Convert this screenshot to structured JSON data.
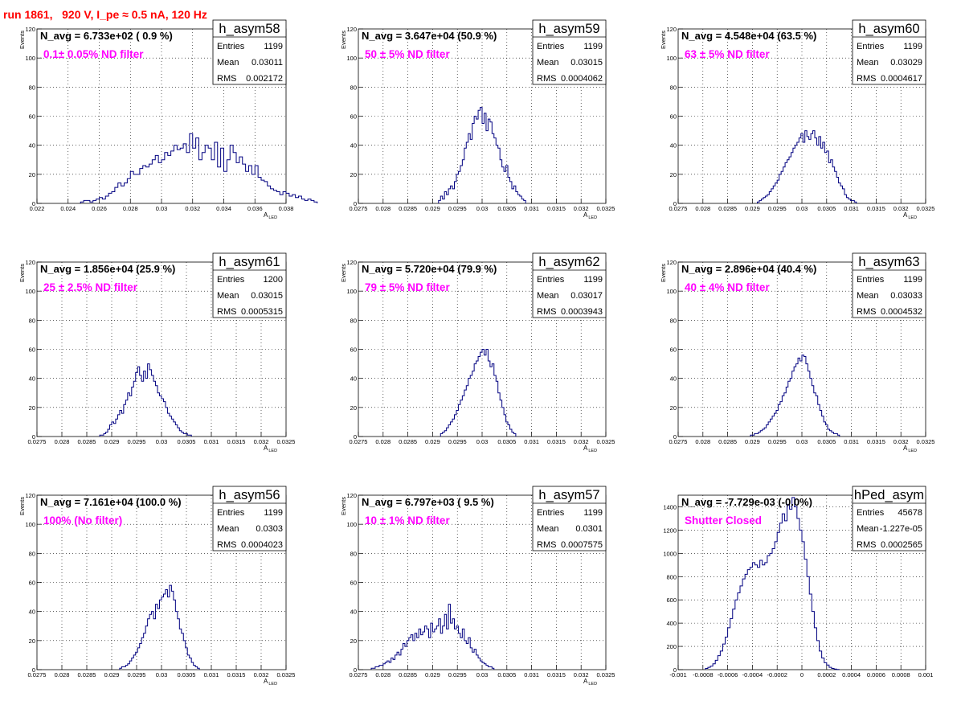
{
  "title": "run 1861,   920 V, I_pe ≈ 0.5 nA, 120 Hz",
  "colors": {
    "title": "#ff0000",
    "label": "#ff00ff",
    "histogram": "#000080",
    "grid": "#000000"
  },
  "chart_data": [
    {
      "type": "bar",
      "name": "h_asym58",
      "ylabel": "Events",
      "xlabel": "A",
      "xlabel_sub": "LED",
      "navg": "N_avg = 6.733e+02 ( 0.9 %)",
      "filter": "0.1± 0.05% ND filter",
      "stats": {
        "entries": "1199",
        "mean": "0.03011",
        "rms": "0.002172"
      },
      "xlim": [
        0.022,
        0.038
      ],
      "ylim": [
        0,
        120
      ],
      "grid": true,
      "legend": "top-right",
      "xticks": [
        "0.022",
        "0.024",
        "0.026",
        "0.028",
        "0.03",
        "0.032",
        "0.034",
        "0.036",
        "0.038"
      ],
      "yticks": [
        "0",
        "20",
        "40",
        "60",
        "80",
        "100",
        "120"
      ],
      "bin_start": 0.0248,
      "bin_width": 0.0002,
      "values": [
        1,
        2,
        2,
        1,
        2,
        3,
        4,
        3,
        5,
        7,
        8,
        11,
        14,
        12,
        14,
        17,
        22,
        20,
        20,
        24,
        26,
        25,
        27,
        30,
        33,
        28,
        30,
        35,
        33,
        36,
        40,
        37,
        38,
        41,
        35,
        48,
        38,
        45,
        30,
        35,
        40,
        38,
        30,
        42,
        25,
        38,
        22,
        30,
        40,
        35,
        28,
        32,
        27,
        22,
        26,
        20,
        26,
        18,
        16,
        15,
        12,
        10,
        9,
        8,
        6,
        8,
        7,
        5,
        6,
        4,
        5,
        3,
        2,
        3,
        2,
        1
      ]
    },
    {
      "type": "bar",
      "name": "h_asym59",
      "ylabel": "Events",
      "xlabel": "A",
      "xlabel_sub": "LED",
      "navg": "N_avg = 3.647e+04 (50.9 %)",
      "filter": "50 ± 5% ND filter",
      "stats": {
        "entries": "1199",
        "mean": "0.03015",
        "rms": "0.0004062"
      },
      "xlim": [
        0.0275,
        0.0325
      ],
      "ylim": [
        0,
        120
      ],
      "grid": true,
      "legend": "top-right",
      "xticks": [
        "0.0275",
        "0.028",
        "0.0285",
        "0.029",
        "0.0295",
        "0.03",
        "0.0305",
        "0.031",
        "0.0315",
        "0.032",
        "0.0325"
      ],
      "yticks": [
        "0",
        "20",
        "40",
        "60",
        "80",
        "100",
        "120"
      ],
      "bin_start": 0.02912,
      "bin_width": 4e-05,
      "values": [
        2,
        5,
        3,
        8,
        6,
        10,
        12,
        10,
        15,
        20,
        22,
        26,
        30,
        38,
        42,
        48,
        44,
        55,
        60,
        58,
        64,
        66,
        55,
        62,
        50,
        58,
        56,
        48,
        45,
        40,
        38,
        30,
        25,
        22,
        26,
        18,
        15,
        10,
        12,
        8,
        6,
        5,
        3,
        2
      ]
    },
    {
      "type": "bar",
      "name": "h_asym60",
      "ylabel": "Events",
      "xlabel": "A",
      "xlabel_sub": "LED",
      "navg": "N_avg = 4.548e+04 (63.5 %)",
      "filter": "63 ± 5% ND filter",
      "stats": {
        "entries": "1199",
        "mean": "0.03029",
        "rms": "0.0004617"
      },
      "xlim": [
        0.0275,
        0.0325
      ],
      "ylim": [
        0,
        120
      ],
      "grid": true,
      "legend": "top-right",
      "xticks": [
        "0.0275",
        "0.028",
        "0.0285",
        "0.029",
        "0.0295",
        "0.03",
        "0.0305",
        "0.031",
        "0.0315",
        "0.032",
        "0.0325"
      ],
      "yticks": [
        "0",
        "20",
        "40",
        "60",
        "80",
        "100",
        "120"
      ],
      "bin_start": 0.0291,
      "bin_width": 4e-05,
      "values": [
        1,
        2,
        3,
        4,
        5,
        6,
        8,
        10,
        12,
        14,
        16,
        20,
        22,
        25,
        28,
        30,
        32,
        35,
        38,
        40,
        42,
        45,
        48,
        42,
        50,
        46,
        44,
        48,
        50,
        45,
        40,
        46,
        38,
        42,
        35,
        36,
        28,
        30,
        25,
        22,
        18,
        14,
        12,
        10,
        6,
        4,
        3,
        2,
        2,
        1
      ]
    },
    {
      "type": "bar",
      "name": "h_asym61",
      "ylabel": "Events",
      "xlabel": "A",
      "xlabel_sub": "LED",
      "navg": "N_avg = 1.856e+04 (25.9 %)",
      "filter": "25 ± 2.5% ND filter",
      "stats": {
        "entries": "1200",
        "mean": "0.03015",
        "rms": "0.0005315"
      },
      "xlim": [
        0.0275,
        0.0325
      ],
      "ylim": [
        0,
        120
      ],
      "grid": true,
      "legend": "top-right",
      "xticks": [
        "0.0275",
        "0.028",
        "0.0285",
        "0.029",
        "0.0295",
        "0.03",
        "0.0305",
        "0.031",
        "0.0315",
        "0.032",
        "0.0325"
      ],
      "yticks": [
        "0",
        "20",
        "40",
        "60",
        "80",
        "100",
        "120"
      ],
      "bin_start": 0.02876,
      "bin_width": 4e-05,
      "values": [
        1,
        1,
        2,
        3,
        5,
        8,
        10,
        9,
        12,
        15,
        18,
        16,
        22,
        25,
        30,
        28,
        34,
        38,
        44,
        48,
        42,
        38,
        45,
        40,
        50,
        46,
        42,
        38,
        35,
        30,
        28,
        26,
        24,
        20,
        16,
        14,
        12,
        10,
        8,
        6,
        4,
        3,
        2,
        2,
        1,
        1
      ]
    },
    {
      "type": "bar",
      "name": "h_asym62",
      "ylabel": "Events",
      "xlabel": "A",
      "xlabel_sub": "LED",
      "navg": "N_avg = 5.720e+04 (79.9 %)",
      "filter": "79 ± 5% ND filter",
      "stats": {
        "entries": "1199",
        "mean": "0.03017",
        "rms": "0.0003943"
      },
      "xlim": [
        0.0275,
        0.0325
      ],
      "ylim": [
        0,
        120
      ],
      "grid": true,
      "legend": "top-right",
      "xticks": [
        "0.0275",
        "0.028",
        "0.0285",
        "0.029",
        "0.0295",
        "0.03",
        "0.0305",
        "0.031",
        "0.0315",
        "0.032",
        "0.0325"
      ],
      "yticks": [
        "0",
        "20",
        "40",
        "60",
        "80",
        "100",
        "120"
      ],
      "bin_start": 0.02916,
      "bin_width": 4e-05,
      "values": [
        2,
        3,
        4,
        6,
        8,
        10,
        12,
        15,
        18,
        22,
        25,
        28,
        32,
        35,
        40,
        42,
        45,
        50,
        52,
        55,
        58,
        60,
        56,
        60,
        52,
        48,
        50,
        42,
        38,
        30,
        25,
        20,
        15,
        10,
        8,
        5,
        3,
        2
      ]
    },
    {
      "type": "bar",
      "name": "h_asym63",
      "ylabel": "Events",
      "xlabel": "A",
      "xlabel_sub": "LED",
      "navg": "N_avg = 2.896e+04 (40.4 %)",
      "filter": "40 ± 4% ND filter",
      "stats": {
        "entries": "1199",
        "mean": "0.03033",
        "rms": "0.0004532"
      },
      "xlim": [
        0.0275,
        0.0325
      ],
      "ylim": [
        0,
        120
      ],
      "grid": true,
      "legend": "top-right",
      "xticks": [
        "0.0275",
        "0.028",
        "0.0285",
        "0.029",
        "0.0295",
        "0.03",
        "0.0305",
        "0.031",
        "0.0315",
        "0.032",
        "0.0325"
      ],
      "yticks": [
        "0",
        "20",
        "40",
        "60",
        "80",
        "100",
        "120"
      ],
      "bin_start": 0.02896,
      "bin_width": 4e-05,
      "values": [
        1,
        1,
        2,
        2,
        3,
        4,
        5,
        6,
        8,
        10,
        12,
        14,
        16,
        18,
        22,
        24,
        28,
        30,
        34,
        38,
        40,
        45,
        48,
        50,
        54,
        52,
        56,
        55,
        50,
        45,
        40,
        35,
        30,
        28,
        22,
        18,
        14,
        10,
        8,
        5,
        4,
        3,
        2,
        2,
        1
      ]
    },
    {
      "type": "bar",
      "name": "h_asym56",
      "ylabel": "Events",
      "xlabel": "A",
      "xlabel_sub": "LED",
      "navg": "N_avg = 7.161e+04 (100.0 %)",
      "filter": "100% (No filter)",
      "stats": {
        "entries": "1199",
        "mean": "0.0303",
        "rms": "0.0004023"
      },
      "xlim": [
        0.0275,
        0.0325
      ],
      "ylim": [
        0,
        120
      ],
      "grid": true,
      "legend": "top-right",
      "xticks": [
        "0.0275",
        "0.028",
        "0.0285",
        "0.029",
        "0.0295",
        "0.03",
        "0.0305",
        "0.031",
        "0.0315",
        "0.032",
        "0.0325"
      ],
      "yticks": [
        "0",
        "20",
        "40",
        "60",
        "80",
        "100",
        "120"
      ],
      "bin_start": 0.02916,
      "bin_width": 4e-05,
      "values": [
        1,
        2,
        2,
        3,
        4,
        6,
        8,
        10,
        12,
        15,
        18,
        22,
        25,
        30,
        35,
        38,
        40,
        35,
        45,
        42,
        48,
        50,
        52,
        55,
        50,
        58,
        54,
        48,
        40,
        35,
        28,
        25,
        20,
        15,
        10,
        8,
        5,
        3,
        2,
        1
      ]
    },
    {
      "type": "bar",
      "name": "h_asym57",
      "ylabel": "Events",
      "xlabel": "A",
      "xlabel_sub": "LED",
      "navg": "N_avg = 6.797e+03 ( 9.5 %)",
      "filter": "10 ± 1% ND filter",
      "stats": {
        "entries": "1199",
        "mean": "0.0301",
        "rms": "0.0007575"
      },
      "xlim": [
        0.0275,
        0.0325
      ],
      "ylim": [
        0,
        120
      ],
      "grid": true,
      "legend": "top-right",
      "xticks": [
        "0.0275",
        "0.028",
        "0.0285",
        "0.029",
        "0.0295",
        "0.03",
        "0.0305",
        "0.031",
        "0.0315",
        "0.032",
        "0.0325"
      ],
      "yticks": [
        "0",
        "20",
        "40",
        "60",
        "80",
        "100",
        "120"
      ],
      "bin_start": 0.02776,
      "bin_width": 4e-05,
      "values": [
        1,
        1,
        2,
        2,
        3,
        3,
        4,
        5,
        6,
        5,
        8,
        7,
        10,
        12,
        10,
        14,
        18,
        16,
        20,
        22,
        24,
        20,
        25,
        22,
        28,
        24,
        26,
        30,
        28,
        22,
        32,
        26,
        28,
        30,
        35,
        25,
        30,
        38,
        28,
        45,
        32,
        35,
        28,
        30,
        25,
        22,
        28,
        20,
        18,
        22,
        15,
        12,
        14,
        10,
        8,
        6,
        5,
        4,
        3,
        2,
        2,
        1
      ]
    },
    {
      "type": "bar",
      "name": "hPed_asym",
      "ylabel": "",
      "xlabel": "",
      "xlabel_sub": "",
      "navg": "N_avg = -7.729e-03 (-0.0%)",
      "filter": "Shutter Closed",
      "stats": {
        "entries": "45678",
        "mean": "-1.227e-05",
        "rms": "0.0002565"
      },
      "xlim": [
        -0.001,
        0.001
      ],
      "ylim": [
        0,
        1500
      ],
      "grid": true,
      "legend": "top-right",
      "xticks": [
        "-0.001",
        "-0.0008",
        "-0.0006",
        "-0.0004",
        "-0.0002",
        "0",
        "0.0002",
        "0.0004",
        "0.0006",
        "0.0008",
        "0.001"
      ],
      "yticks": [
        "0",
        "200",
        "400",
        "600",
        "800",
        "1000",
        "1200",
        "1400"
      ],
      "bin_start": -0.00078,
      "bin_width": 2e-05,
      "values": [
        10,
        20,
        30,
        50,
        80,
        120,
        160,
        220,
        280,
        360,
        440,
        520,
        600,
        660,
        720,
        780,
        820,
        860,
        880,
        920,
        900,
        880,
        940,
        900,
        920,
        980,
        1000,
        1040,
        1100,
        1180,
        1260,
        1340,
        1280,
        1420,
        1380,
        1480,
        1400,
        1300,
        1200,
        1100,
        950,
        800,
        650,
        500,
        360,
        250,
        160,
        100,
        60,
        40,
        20,
        10,
        5,
        2
      ]
    }
  ]
}
